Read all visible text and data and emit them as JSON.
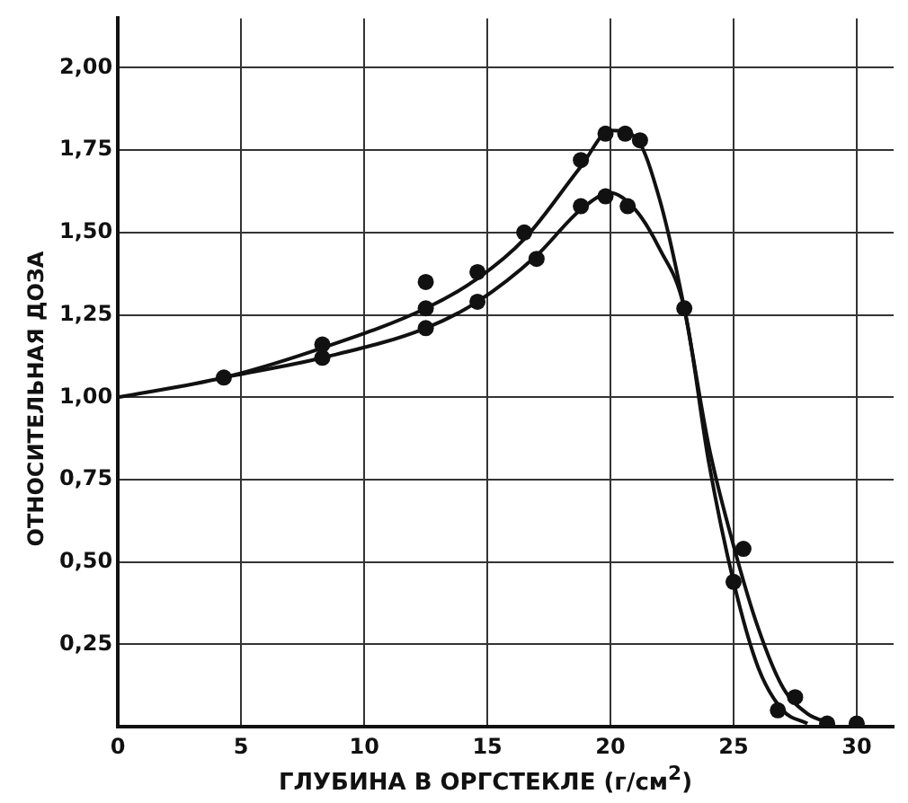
{
  "chart_data": {
    "type": "scatter",
    "xlabel": "ГЛУБИНА В ОРГСТЕКЛЕ (г/см$^{2}$)",
    "ylabel": "ОТНОСИТЕЛЬНАЯ ДОЗА",
    "xlim": [
      0,
      31.5
    ],
    "ylim": [
      0,
      2.15
    ],
    "xticks": [
      0,
      5,
      10,
      15,
      20,
      25,
      30
    ],
    "yticks": [
      {
        "value": 0.25,
        "label": "0,25"
      },
      {
        "value": 0.5,
        "label": "0,50"
      },
      {
        "value": 0.75,
        "label": "0,75"
      },
      {
        "value": 1,
        "label": "1,00"
      },
      {
        "value": 1.25,
        "label": "1,25"
      },
      {
        "value": 1.5,
        "label": "1,50"
      },
      {
        "value": 1.75,
        "label": "1,75"
      },
      {
        "value": 2,
        "label": "2,00"
      }
    ],
    "grid": true,
    "legend": false,
    "series": [
      {
        "type": "scatter",
        "marker": "circle",
        "color": "#111111",
        "x": [
          4.3,
          8.3,
          12.5,
          12.5,
          14.6,
          16.5,
          18.8,
          19.8,
          20.6,
          21.2,
          23.0,
          25.4,
          27.5,
          28.8
        ],
        "values": [
          1.06,
          1.16,
          1.27,
          1.35,
          1.38,
          1.5,
          1.72,
          1.8,
          1.8,
          1.78,
          1.27,
          0.54,
          0.09,
          0.01
        ]
      },
      {
        "type": "scatter",
        "marker": "circle",
        "color": "#111111",
        "x": [
          8.3,
          12.5,
          14.6,
          17.0,
          18.8,
          19.8,
          20.7,
          25.0,
          26.8,
          30.0
        ],
        "values": [
          1.12,
          1.21,
          1.29,
          1.42,
          1.58,
          1.61,
          1.58,
          0.44,
          0.05,
          0.01
        ]
      },
      {
        "type": "line",
        "marker": "none",
        "line_style": "solid",
        "color": "#111111",
        "x": [
          0,
          4.3,
          8.3,
          12.5,
          14.6,
          16.5,
          18.8,
          20,
          21,
          22,
          23,
          24,
          25,
          26,
          27,
          28,
          29
        ],
        "values": [
          1.0,
          1.06,
          1.15,
          1.27,
          1.36,
          1.48,
          1.7,
          1.81,
          1.79,
          1.6,
          1.27,
          0.85,
          0.55,
          0.3,
          0.12,
          0.04,
          0.01
        ]
      },
      {
        "type": "line",
        "marker": "none",
        "line_style": "solid",
        "color": "#111111",
        "x": [
          4.3,
          8.3,
          12.5,
          14.6,
          17,
          18.8,
          20,
          21,
          22,
          23,
          24,
          25,
          26,
          27,
          28
        ],
        "values": [
          1.06,
          1.12,
          1.21,
          1.29,
          1.43,
          1.57,
          1.62,
          1.57,
          1.45,
          1.27,
          0.8,
          0.44,
          0.18,
          0.05,
          0.01
        ]
      }
    ]
  }
}
